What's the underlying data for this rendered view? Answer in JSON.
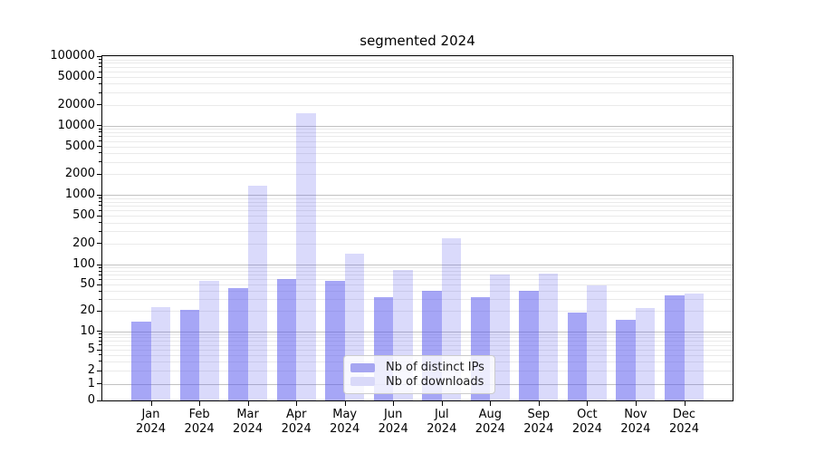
{
  "title": "segmented 2024",
  "colors": {
    "ips_bar": "rgba(85,85,238,0.52)",
    "downloads_bar": "rgba(85,85,238,0.22)",
    "ips_swatch": "#a6a6f1",
    "downloads_swatch": "#d9d9f9",
    "grid_major": "#c2c2c2",
    "grid_minor": "#eaeaea",
    "axis": "#000000"
  },
  "legend": {
    "items": [
      {
        "label": "Nb of distinct IPs",
        "swatch": "#a6a6f1"
      },
      {
        "label": "Nb of downloads",
        "swatch": "#d9d9f9"
      }
    ]
  },
  "chart_data": {
    "type": "bar",
    "title": "segmented 2024",
    "categories": [
      "Jan 2024",
      "Feb 2024",
      "Mar 2024",
      "Apr 2024",
      "May 2024",
      "Jun 2024",
      "Jul 2024",
      "Aug 2024",
      "Sep 2024",
      "Oct 2024",
      "Nov 2024",
      "Dec 2024"
    ],
    "series": [
      {
        "name": "Nb of distinct IPs",
        "color": "rgba(85,85,238,0.52)",
        "values": [
          14,
          21,
          45,
          60,
          57,
          32,
          41,
          32,
          40,
          19,
          15,
          34
        ]
      },
      {
        "name": "Nb of downloads",
        "color": "rgba(85,85,238,0.22)",
        "values": [
          23,
          57,
          1350,
          15000,
          145,
          84,
          240,
          72,
          74,
          48,
          22,
          37
        ]
      }
    ],
    "yscale": "symlog",
    "ylim": [
      0,
      100000
    ],
    "y_tick_values": [
      100000,
      50000,
      20000,
      10000,
      5000,
      2000,
      1000,
      500,
      200,
      100,
      50,
      20,
      10,
      5,
      2,
      1,
      0
    ],
    "grid": "horizontal",
    "legend_position": "lower-center"
  }
}
